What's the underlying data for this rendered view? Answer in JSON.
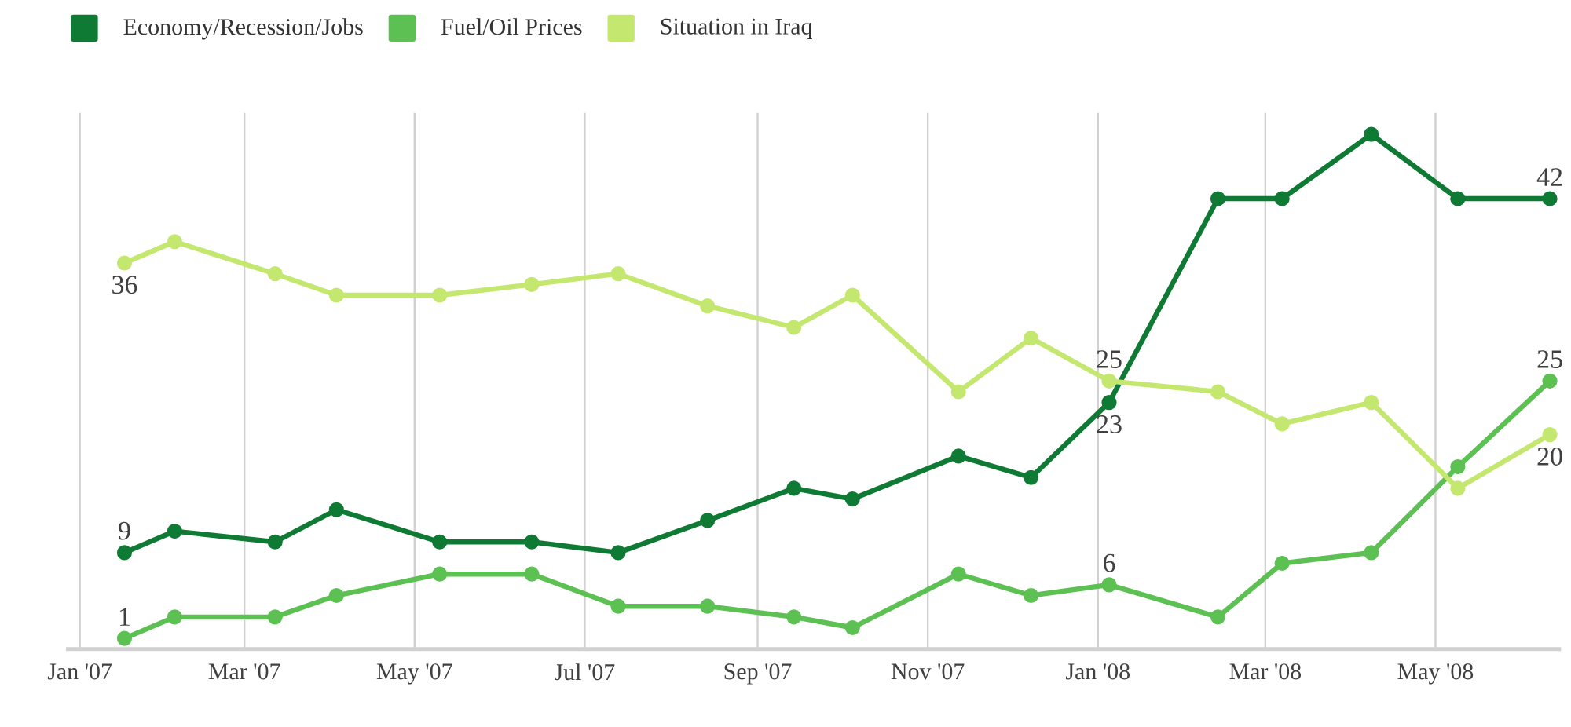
{
  "chart_data": {
    "type": "line",
    "x": [
      "2007-01-17",
      "2007-02-04",
      "2007-03-12",
      "2007-04-03",
      "2007-05-10",
      "2007-06-12",
      "2007-07-13",
      "2007-08-14",
      "2007-09-14",
      "2007-10-05",
      "2007-11-12",
      "2007-12-08",
      "2008-01-05",
      "2008-02-13",
      "2008-03-07",
      "2008-04-08",
      "2008-05-09",
      "2008-06-11"
    ],
    "series": [
      {
        "name": "Economy/Recession/Jobs",
        "color": "#0e7a34",
        "values": [
          9,
          11,
          10,
          13,
          10,
          10,
          9,
          12,
          15,
          14,
          18,
          16,
          23,
          42,
          42,
          48,
          42,
          42
        ],
        "value_labels": [
          "9",
          null,
          null,
          null,
          null,
          null,
          null,
          null,
          null,
          null,
          null,
          null,
          "23",
          null,
          null,
          null,
          null,
          "42"
        ]
      },
      {
        "name": "Fuel/Oil Prices",
        "color": "#5cc152",
        "values": [
          1,
          3,
          3,
          5,
          7,
          7,
          4,
          4,
          3,
          2,
          7,
          5,
          6,
          3,
          8,
          9,
          17,
          25
        ],
        "value_labels": [
          "1",
          null,
          null,
          null,
          null,
          null,
          null,
          null,
          null,
          null,
          null,
          null,
          "6",
          null,
          null,
          null,
          null,
          "25"
        ]
      },
      {
        "name": "Situation in Iraq",
        "color": "#c4e86f",
        "values": [
          36,
          38,
          35,
          33,
          33,
          34,
          35,
          32,
          30,
          33,
          24,
          29,
          25,
          24,
          21,
          23,
          15,
          20
        ],
        "value_labels": [
          "36",
          null,
          null,
          null,
          null,
          null,
          null,
          null,
          null,
          null,
          null,
          null,
          "25",
          null,
          null,
          null,
          null,
          "20"
        ]
      }
    ],
    "xlim": [
      "2006-12-27",
      "2008-06-15"
    ],
    "xticks": [
      {
        "value": "2007-01-01",
        "label": "Jan '07"
      },
      {
        "value": "2007-03-01",
        "label": "Mar '07"
      },
      {
        "value": "2007-05-01",
        "label": "May '07"
      },
      {
        "value": "2007-07-01",
        "label": "Jul '07"
      },
      {
        "value": "2007-09-01",
        "label": "Sep '07"
      },
      {
        "value": "2007-11-01",
        "label": "Nov '07"
      },
      {
        "value": "2008-01-01",
        "label": "Jan '08"
      },
      {
        "value": "2008-03-01",
        "label": "Mar '08"
      },
      {
        "value": "2008-05-01",
        "label": "May '08"
      }
    ],
    "ylim": [
      0,
      50
    ],
    "tick_labels": "x",
    "grid": "x",
    "legend": "top left",
    "marker": "circle",
    "line_style": "solid"
  }
}
